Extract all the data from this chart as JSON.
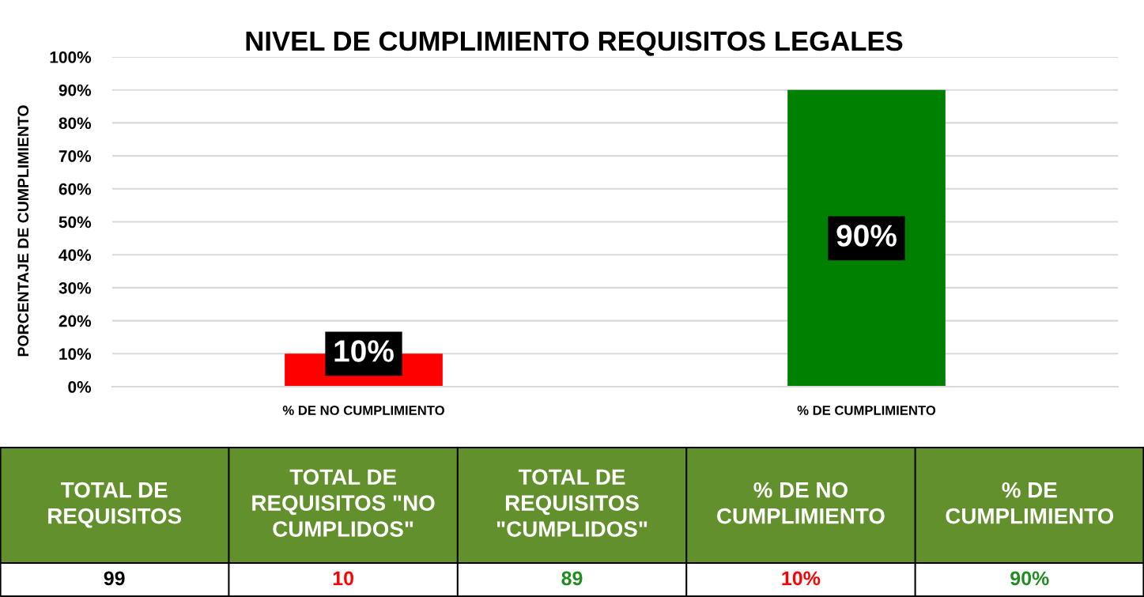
{
  "chart_data": [
    {
      "type": "bar",
      "title": "NIVEL DE CUMPLIMIENTO REQUISITOS LEGALES",
      "ylabel": "PORCENTAJE DE CUMPLIMIENTO",
      "categories": [
        "% DE NO CUMPLIMIENTO",
        "% DE CUMPLIMIENTO"
      ],
      "values": [
        10,
        90
      ],
      "colors": [
        "#ff0000",
        "#008000"
      ],
      "value_labels": [
        "10%",
        "90%"
      ],
      "ylim": [
        0,
        100
      ],
      "yticks": [
        {
          "value": 0,
          "label": "0%"
        },
        {
          "value": 10,
          "label": "10%"
        },
        {
          "value": 20,
          "label": "20%"
        },
        {
          "value": 30,
          "label": "30%"
        },
        {
          "value": 40,
          "label": "40%"
        },
        {
          "value": 50,
          "label": "50%"
        },
        {
          "value": 60,
          "label": "60%"
        },
        {
          "value": 70,
          "label": "70%"
        },
        {
          "value": 80,
          "label": "80%"
        },
        {
          "value": 90,
          "label": "90%"
        },
        {
          "value": 100,
          "label": "100%"
        }
      ],
      "grid": "y"
    },
    {
      "type": "other",
      "categories": [
        "TOTAL DE REQUISITOS",
        "TOTAL DE REQUISITOS \"NO CUMPLIDOS\"",
        "TOTAL DE REQUISITOS \"CUMPLIDOS\"",
        "% DE NO CUMPLIMIENTO",
        "% DE CUMPLIMIENTO"
      ],
      "values": [
        99,
        10,
        89,
        10,
        90
      ],
      "value_labels": [
        "99",
        "10",
        "89",
        "10%",
        "90%"
      ],
      "color": "#62902c",
      "colors": [
        "#000000",
        "#ff0000",
        "#228b22",
        "#ff0000",
        "#228b22"
      ]
    }
  ]
}
